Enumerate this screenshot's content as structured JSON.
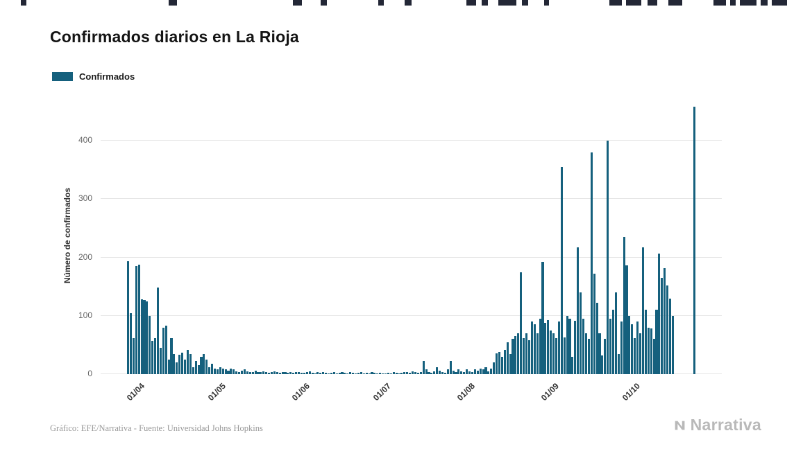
{
  "page": {
    "title": "Confirmados diarios en La Rioja"
  },
  "legend": {
    "label": "Confirmados",
    "color": "#15607d"
  },
  "chart_data": {
    "type": "bar",
    "title": "Confirmados diarios en La Rioja",
    "series_name": "Confirmados",
    "xlabel": "",
    "ylabel": "Número de confirmados",
    "bar_color": "#15607d",
    "grid": true,
    "legend_position": "top-left",
    "ylim": [
      0,
      475
    ],
    "yticks": [
      0,
      100,
      200,
      300,
      400
    ],
    "xticks": [
      {
        "label": "01/04",
        "index": 4
      },
      {
        "label": "01/05",
        "index": 34
      },
      {
        "label": "01/06",
        "index": 65
      },
      {
        "label": "01/07",
        "index": 95
      },
      {
        "label": "01/08",
        "index": 126
      },
      {
        "label": "01/09",
        "index": 157
      },
      {
        "label": "01/10",
        "index": 187
      }
    ],
    "values": [
      193,
      105,
      62,
      185,
      188,
      128,
      127,
      125,
      100,
      57,
      62,
      148,
      45,
      80,
      83,
      25,
      62,
      35,
      20,
      33,
      37,
      25,
      42,
      35,
      12,
      23,
      15,
      30,
      35,
      25,
      12,
      18,
      10,
      8,
      12,
      10,
      8,
      6,
      10,
      8,
      5,
      4,
      6,
      8,
      5,
      3,
      4,
      6,
      4,
      3,
      5,
      4,
      2,
      3,
      5,
      3,
      2,
      4,
      3,
      2,
      3,
      2,
      4,
      3,
      2,
      2,
      3,
      5,
      2,
      1,
      3,
      2,
      4,
      2,
      1,
      2,
      3,
      1,
      2,
      4,
      2,
      1,
      3,
      2,
      1,
      2,
      3,
      1,
      2,
      1,
      3,
      2,
      1,
      2,
      1,
      1,
      2,
      1,
      3,
      2,
      1,
      2,
      4,
      3,
      2,
      5,
      3,
      2,
      4,
      22,
      8,
      4,
      2,
      5,
      12,
      6,
      3,
      2,
      8,
      22,
      6,
      4,
      8,
      5,
      3,
      8,
      5,
      4,
      8,
      6,
      10,
      8,
      12,
      5,
      10,
      20,
      36,
      38,
      30,
      42,
      55,
      35,
      60,
      65,
      70,
      175,
      62,
      70,
      58,
      90,
      85,
      70,
      95,
      192,
      88,
      93,
      75,
      70,
      62,
      90,
      355,
      63,
      100,
      95,
      30,
      92,
      217,
      140,
      95,
      70,
      60,
      380,
      172,
      122,
      70,
      32,
      60,
      400,
      95,
      110,
      140,
      35,
      90,
      235,
      186,
      100,
      85,
      62,
      90,
      70,
      217,
      110,
      80,
      78,
      60,
      110,
      207,
      165,
      182,
      152,
      130,
      100,
      0,
      0,
      0,
      0,
      0,
      0,
      0,
      458
    ]
  },
  "footer": {
    "credit": "Gráfico: EFE/Narrativa - Fuente: Universidad Johns Hopkins"
  },
  "branding": {
    "logo_text": "Narrativa"
  }
}
